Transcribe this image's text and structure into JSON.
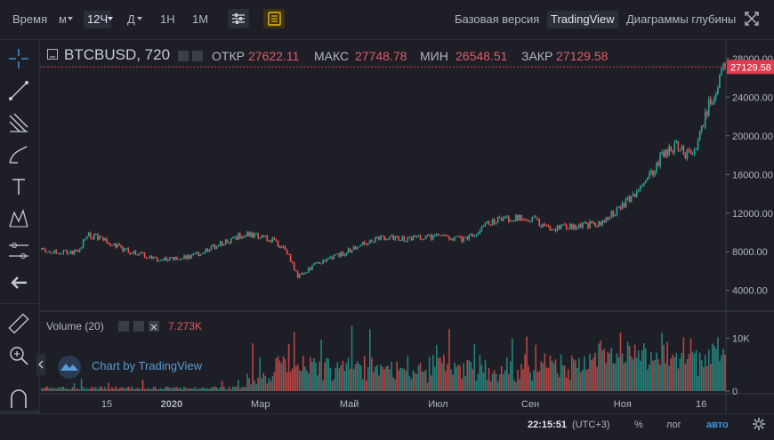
{
  "toolbar": {
    "time_label": "Время",
    "minutes": "м",
    "interval": "12Ч",
    "days": "Д",
    "h1": "1Н",
    "m1": "1М",
    "basic_version": "Базовая версия",
    "tradingview": "TradingView",
    "depth_charts": "Диаграммы глубины"
  },
  "legend": {
    "symbol": "BTCBUSD, 720",
    "open_label": "ОТКР",
    "open": "27622.11",
    "high_label": "МАКС",
    "high": "27748.78",
    "low_label": "МИН",
    "low": "26548.51",
    "close_label": "ЗАКР",
    "close": "27129.58"
  },
  "volume": {
    "label": "Volume (20)",
    "value": "7.273K"
  },
  "watermark": "Chart by TradingView",
  "bottom": {
    "time": "22:15:51",
    "tz": "(UTC+3)",
    "percent": "%",
    "log": "лог",
    "auto": "авто"
  },
  "colors": {
    "up": "#26a69a",
    "down": "#ef5350",
    "accent": "#e03c4f",
    "bg": "#1e1f26"
  },
  "chart_data": {
    "type": "candlestick",
    "current_price_label": "27129.58",
    "price_ticks": [
      {
        "v": 28000,
        "label": "28000.00"
      },
      {
        "v": 24000,
        "label": "24000.00"
      },
      {
        "v": 20000,
        "label": "20000.00"
      },
      {
        "v": 16000,
        "label": "16000.00"
      },
      {
        "v": 12000,
        "label": "12000.00"
      },
      {
        "v": 8000,
        "label": "8000.00"
      },
      {
        "v": 4000,
        "label": "4000.00"
      }
    ],
    "volume_ticks": [
      {
        "v": 10000,
        "label": "10K"
      },
      {
        "v": 0,
        "label": "0"
      }
    ],
    "time_ticks": [
      {
        "t": 0.095,
        "label": "15"
      },
      {
        "t": 0.19,
        "label": "2020"
      },
      {
        "t": 0.32,
        "label": "Мар"
      },
      {
        "t": 0.45,
        "label": "Май"
      },
      {
        "t": 0.58,
        "label": "Июл"
      },
      {
        "t": 0.715,
        "label": "Сен"
      },
      {
        "t": 0.85,
        "label": "Ноя"
      },
      {
        "t": 0.965,
        "label": "16"
      }
    ],
    "price_keypoints": [
      [
        0.0,
        8200
      ],
      [
        0.04,
        7900
      ],
      [
        0.055,
        8100
      ],
      [
        0.065,
        9800
      ],
      [
        0.09,
        9300
      ],
      [
        0.12,
        8200
      ],
      [
        0.17,
        7200
      ],
      [
        0.22,
        7500
      ],
      [
        0.26,
        8800
      ],
      [
        0.3,
        9900
      ],
      [
        0.34,
        9200
      ],
      [
        0.36,
        7800
      ],
      [
        0.375,
        5400
      ],
      [
        0.4,
        6700
      ],
      [
        0.44,
        7800
      ],
      [
        0.47,
        8900
      ],
      [
        0.5,
        9500
      ],
      [
        0.53,
        9300
      ],
      [
        0.58,
        9600
      ],
      [
        0.62,
        9300
      ],
      [
        0.66,
        11200
      ],
      [
        0.7,
        11600
      ],
      [
        0.72,
        11300
      ],
      [
        0.74,
        10400
      ],
      [
        0.78,
        10600
      ],
      [
        0.82,
        11000
      ],
      [
        0.85,
        12800
      ],
      [
        0.88,
        14600
      ],
      [
        0.91,
        18200
      ],
      [
        0.93,
        19100
      ],
      [
        0.945,
        18000
      ],
      [
        0.96,
        19200
      ],
      [
        0.975,
        23000
      ],
      [
        0.99,
        25500
      ],
      [
        1.0,
        27129
      ]
    ]
  }
}
